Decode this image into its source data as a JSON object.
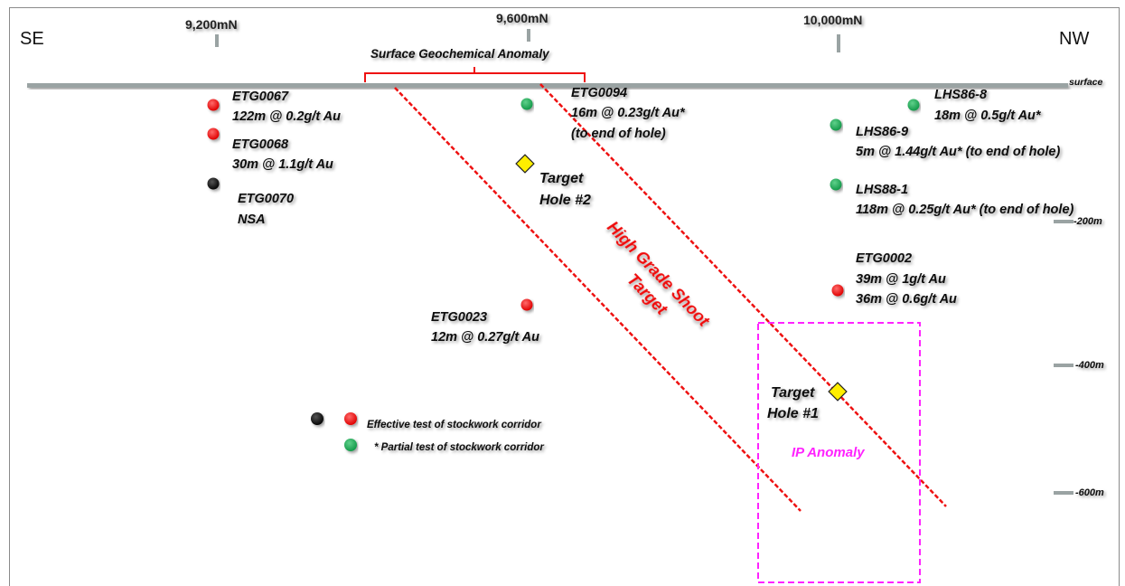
{
  "directions": {
    "left": "SE",
    "right": "NW"
  },
  "northings": [
    "9,200mN",
    "9,600mN",
    "10,000mN"
  ],
  "surface_label": "surface",
  "depths": [
    "-200m",
    "-400m",
    "-600m"
  ],
  "geochem_label": "Surface Geochemical Anomaly",
  "high_grade": {
    "line1": "High Grade Shoot",
    "line2": "Target"
  },
  "ip_label": "IP Anomaly",
  "targets": {
    "t1": {
      "line1": "Target",
      "line2": "Hole #1"
    },
    "t2": {
      "line1": "Target",
      "line2": "Hole  #2"
    }
  },
  "holes": {
    "etg0067": {
      "name": "ETG0067",
      "result": "122m @ 0.2g/t Au",
      "color": "red"
    },
    "etg0068": {
      "name": "ETG0068",
      "result": "30m @ 1.1g/t Au",
      "color": "red"
    },
    "etg0070": {
      "name": "ETG0070",
      "result": "NSA",
      "color": "black"
    },
    "etg0094": {
      "name": "ETG0094",
      "result": "16m @ 0.23g/t Au*",
      "note": "(to end of hole)",
      "color": "green"
    },
    "lhs868": {
      "name": "LHS86-8",
      "result": "18m @ 0.5g/t Au*",
      "color": "green"
    },
    "lhs869": {
      "name": "LHS86-9",
      "result": "5m @ 1.44g/t Au* (to end of hole)",
      "color": "green"
    },
    "lhs881": {
      "name": "LHS88-1",
      "result": "118m @ 0.25g/t Au* (to end of hole)",
      "color": "green"
    },
    "etg0002": {
      "name": "ETG0002",
      "result1": "39m @ 1g/t Au",
      "result2": "36m @ 0.6g/t Au",
      "color": "red"
    },
    "etg0023": {
      "name": "ETG0023",
      "result": "12m @ 0.27g/t Au",
      "color": "red"
    }
  },
  "legend": {
    "effective": "Effective test of stockwork corridor",
    "partial": "* Partial test of stockwork corridor"
  },
  "colors": {
    "red_dot": "#ee1c24",
    "green_dot": "#1fa055",
    "black_dot": "#111111",
    "target_line": "#ee1111",
    "ip_box": "#ff22ff",
    "target_marker": "#ffee00",
    "surface": "#9aa3a3"
  }
}
